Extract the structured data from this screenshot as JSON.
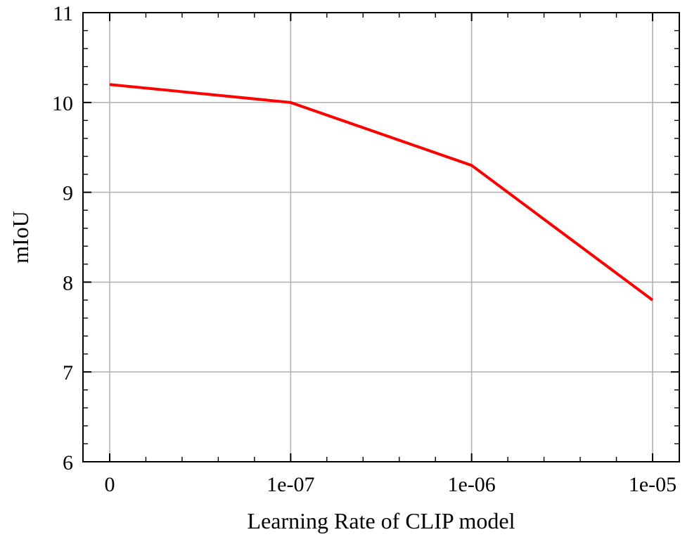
{
  "chart_data": {
    "type": "line",
    "categories": [
      "0",
      "1e-07",
      "1e-06",
      "1e-05"
    ],
    "series": [
      {
        "values": [
          10.2,
          10.0,
          9.3,
          7.8
        ]
      }
    ],
    "xlabel": "Learning Rate of CLIP model",
    "ylabel": "mIoU",
    "ylim": [
      6,
      11
    ],
    "yticks": [
      "6",
      "7",
      "8",
      "9",
      "10",
      "11"
    ],
    "grid": true,
    "line_color": "#ff0000"
  }
}
